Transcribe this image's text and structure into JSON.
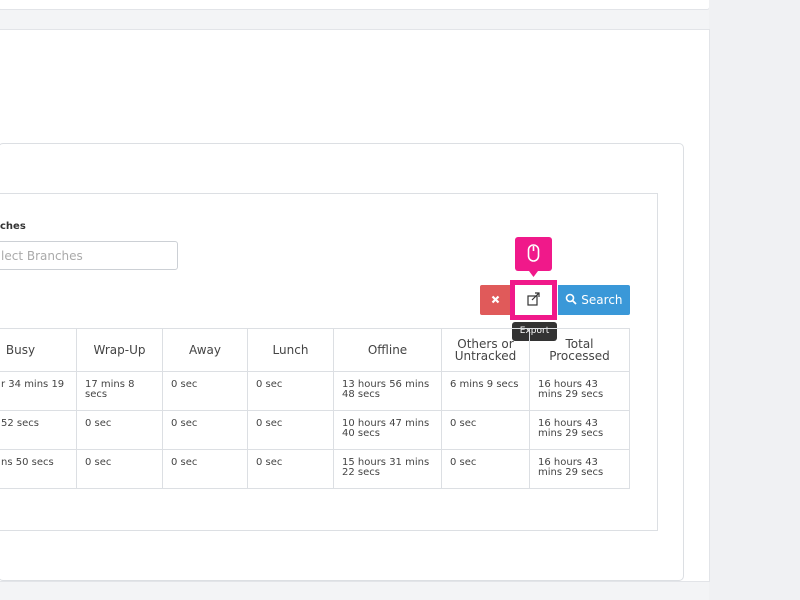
{
  "filters": {
    "branches_label": "ches",
    "branches_placeholder": "lect Branches"
  },
  "buttons": {
    "search": "Search",
    "export_tooltip": "Export"
  },
  "table": {
    "headers": [
      "Busy",
      "Wrap-Up",
      "Away",
      "Lunch",
      "Offline",
      "Others or Untracked",
      "Total Processed"
    ],
    "rows": [
      [
        "r 34 mins 19",
        "17 mins 8 secs",
        "0 sec",
        "0 sec",
        "13 hours 56 mins 48 secs",
        "6 mins 9 secs",
        "16 hours 43 mins 29 secs"
      ],
      [
        "52 secs",
        "0 sec",
        "0 sec",
        "0 sec",
        "10 hours 47 mins 40 secs",
        "0 sec",
        "16 hours 43 mins 29 secs"
      ],
      [
        "ns 50 secs",
        "0 sec",
        "0 sec",
        "0 sec",
        "15 hours 31 mins 22 secs",
        "0 sec",
        "16 hours 43 mins 29 secs"
      ]
    ]
  }
}
